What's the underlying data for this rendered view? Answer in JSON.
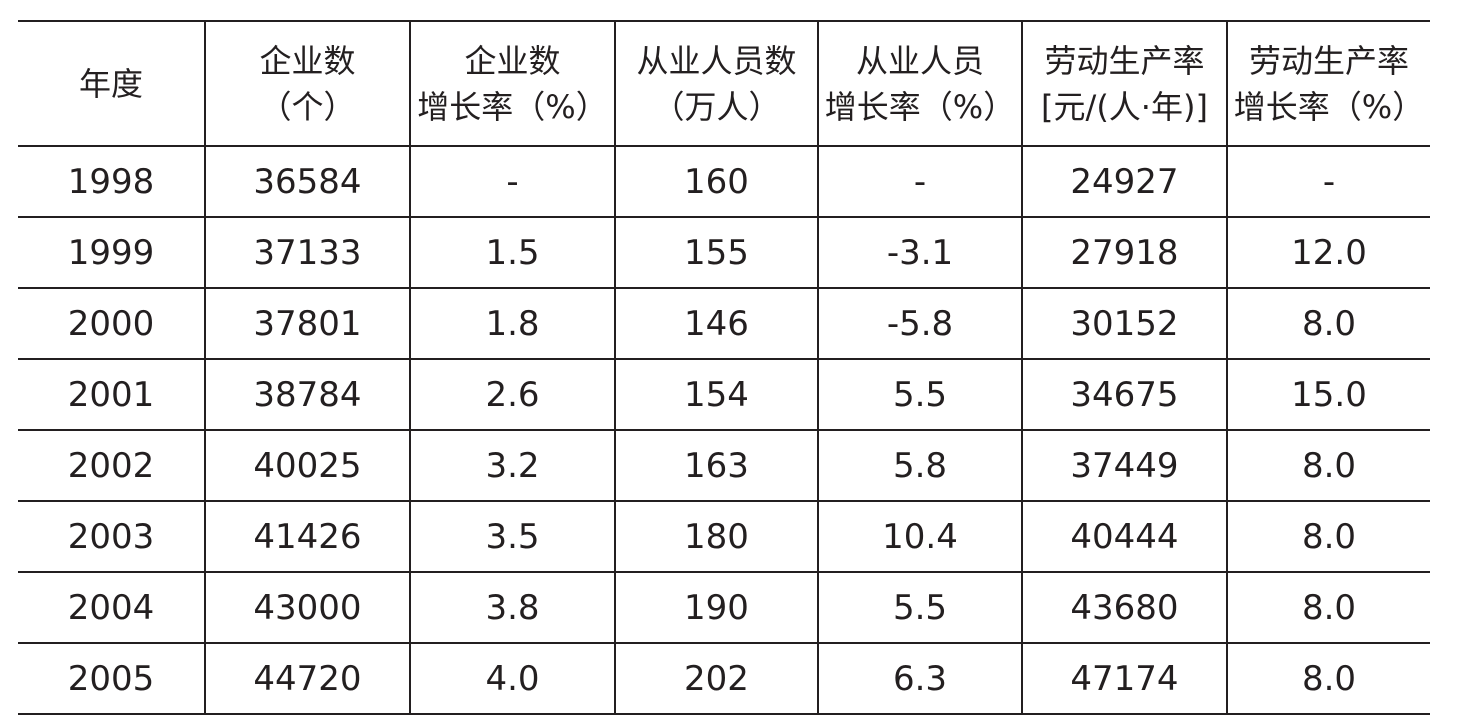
{
  "table": {
    "header": [
      [
        "年度"
      ],
      [
        "企业数",
        "（个）"
      ],
      [
        "企业数",
        "增长率（%）"
      ],
      [
        "从业人员数",
        "（万人）"
      ],
      [
        "从业人员",
        "增长率（%）"
      ],
      [
        "劳动生产率",
        "[元/(人·年)]"
      ],
      [
        "劳动生产率",
        "增长率（%）"
      ]
    ],
    "rows": [
      [
        "1998",
        "36584",
        "-",
        "160",
        "-",
        "24927",
        "-"
      ],
      [
        "1999",
        "37133",
        "1.5",
        "155",
        "-3.1",
        "27918",
        "12.0"
      ],
      [
        "2000",
        "37801",
        "1.8",
        "146",
        "-5.8",
        "30152",
        "8.0"
      ],
      [
        "2001",
        "38784",
        "2.6",
        "154",
        "5.5",
        "34675",
        "15.0"
      ],
      [
        "2002",
        "40025",
        "3.2",
        "163",
        "5.8",
        "37449",
        "8.0"
      ],
      [
        "2003",
        "41426",
        "3.5",
        "180",
        "10.4",
        "40444",
        "8.0"
      ],
      [
        "2004",
        "43000",
        "3.8",
        "190",
        "5.5",
        "43680",
        "8.0"
      ],
      [
        "2005",
        "44720",
        "4.0",
        "202",
        "6.3",
        "47174",
        "8.0"
      ]
    ]
  }
}
